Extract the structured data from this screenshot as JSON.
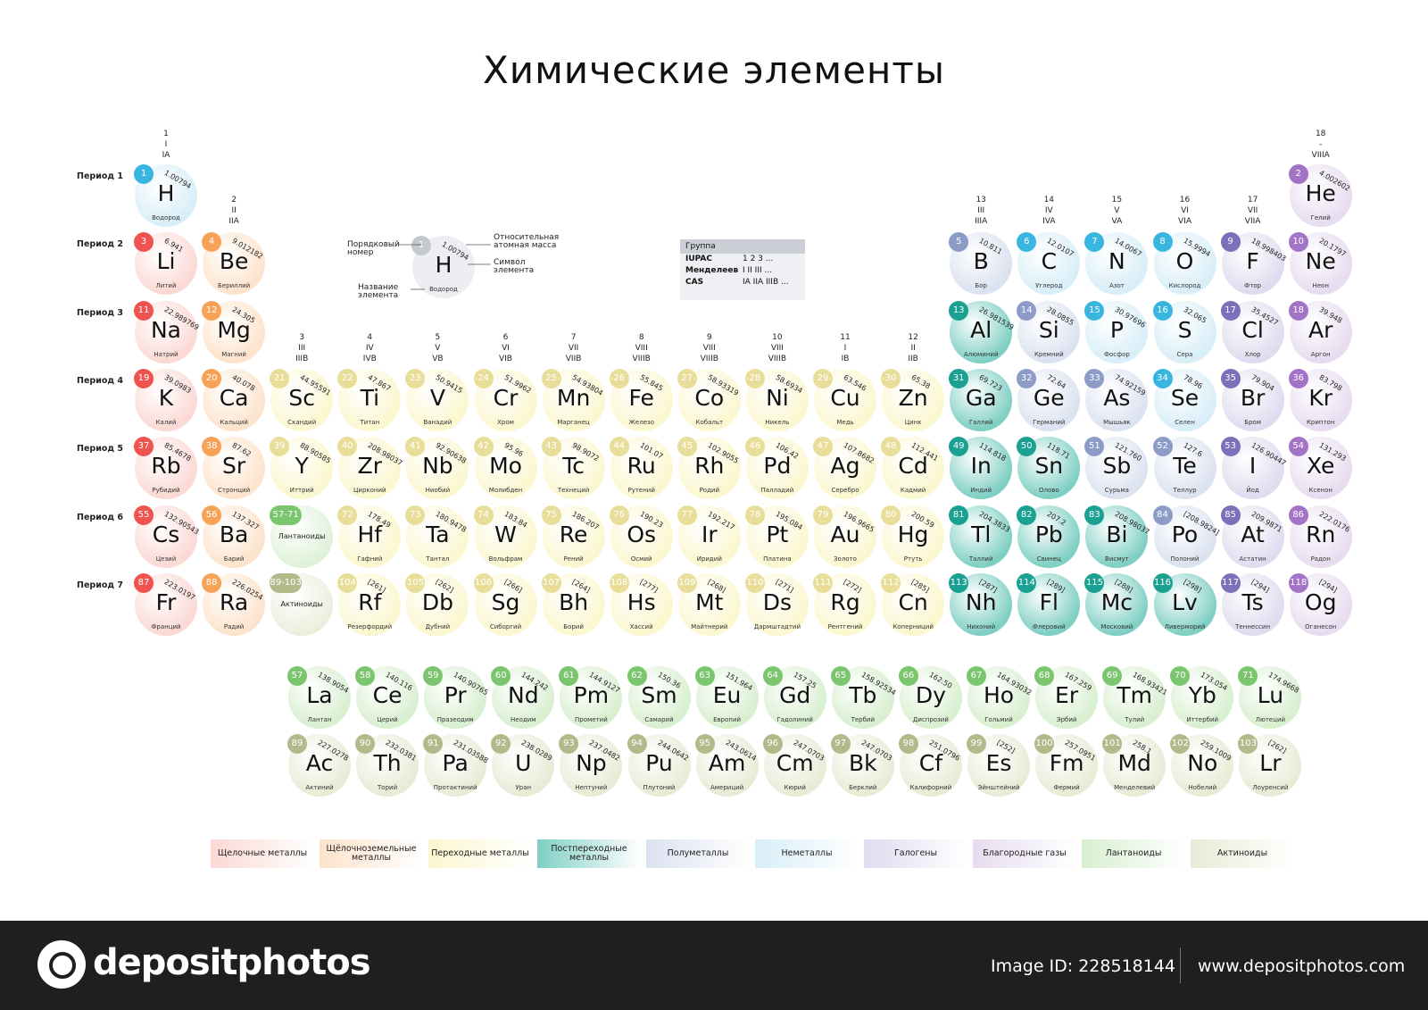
{
  "title": "Химические элементы",
  "groups": [
    {
      "n": "1",
      "r": "I",
      "c": "IA"
    },
    {
      "n": "2",
      "r": "II",
      "c": "IIA"
    },
    {
      "n": "3",
      "r": "III",
      "c": "IIIB"
    },
    {
      "n": "4",
      "r": "IV",
      "c": "IVB"
    },
    {
      "n": "5",
      "r": "V",
      "c": "VB"
    },
    {
      "n": "6",
      "r": "VI",
      "c": "VIB"
    },
    {
      "n": "7",
      "r": "VII",
      "c": "VIIB"
    },
    {
      "n": "8",
      "r": "VIII",
      "c": "VIIIB"
    },
    {
      "n": "9",
      "r": "VIII",
      "c": "VIIIB"
    },
    {
      "n": "10",
      "r": "VIII",
      "c": "VIIIB"
    },
    {
      "n": "11",
      "r": "I",
      "c": "IB"
    },
    {
      "n": "12",
      "r": "II",
      "c": "IIB"
    },
    {
      "n": "13",
      "r": "III",
      "c": "IIIA"
    },
    {
      "n": "14",
      "r": "IV",
      "c": "IVA"
    },
    {
      "n": "15",
      "r": "V",
      "c": "VA"
    },
    {
      "n": "16",
      "r": "VI",
      "c": "VIA"
    },
    {
      "n": "17",
      "r": "VII",
      "c": "VIIA"
    },
    {
      "n": "18",
      "r": "-",
      "c": "VIIIA"
    }
  ],
  "periods": [
    "Период 1",
    "Период 2",
    "Период 3",
    "Период 4",
    "Период 5",
    "Период 6",
    "Период 7"
  ],
  "key": {
    "number_label": "Порядковый номер",
    "mass_label": "Относительная атомная масса",
    "symbol_label": "Символ элемента",
    "name_label": "Название элемента",
    "number": "1",
    "symbol": "H",
    "mass": "1.00794",
    "name": "Водород"
  },
  "group_box": {
    "header": "Группа",
    "rows": [
      {
        "label": "IUPAC",
        "value": "1  2  3 ..."
      },
      {
        "label": "Менделеев",
        "value": "I  II  III ..."
      },
      {
        "label": "CAS",
        "value": "IA  IIA  IIIB ..."
      }
    ]
  },
  "placeholders": [
    {
      "num": "57-71",
      "label": "Лантаноиды",
      "cat": "lan"
    },
    {
      "num": "89-103",
      "label": "Актиноиды",
      "cat": "act"
    }
  ],
  "categories": {
    "alk": {
      "fill": "#fbd9d4",
      "badge": "#ef5350"
    },
    "ae": {
      "fill": "#fde3cb",
      "badge": "#f6a357"
    },
    "tm": {
      "fill": "#fbf7cf",
      "badge": "#e8de9a"
    },
    "ptm": {
      "fill": "#7fcfc4",
      "badge": "#1aa192"
    },
    "met": {
      "fill": "#dbe2f0",
      "badge": "#8c9cc7"
    },
    "non": {
      "fill": "#d8eef8",
      "badge": "#38b6e0"
    },
    "hal": {
      "fill": "#dedcef",
      "badge": "#7e6fba"
    },
    "nob": {
      "fill": "#e7dcf0",
      "badge": "#a374c6"
    },
    "lan": {
      "fill": "#d8efd0",
      "badge": "#7cc56f"
    },
    "act": {
      "fill": "#e8ebd6",
      "badge": "#b4b98b"
    }
  },
  "legend": [
    {
      "label": "Щелочные металлы",
      "cat": "alk"
    },
    {
      "label": "Щёлочноземельные металлы",
      "cat": "ae"
    },
    {
      "label": "Переходные металлы",
      "cat": "tm"
    },
    {
      "label": "Постпереходные металлы",
      "cat": "ptm"
    },
    {
      "label": "Полуметаллы",
      "cat": "met"
    },
    {
      "label": "Неметаллы",
      "cat": "non"
    },
    {
      "label": "Галогены",
      "cat": "hal"
    },
    {
      "label": "Благородные газы",
      "cat": "nob"
    },
    {
      "label": "Лантаноиды",
      "cat": "lan"
    },
    {
      "label": "Актиноиды",
      "cat": "act"
    }
  ],
  "elements": [
    {
      "n": 1,
      "s": "H",
      "m": "1.00794",
      "name": "Водород",
      "g": 1,
      "p": 1,
      "c": "non"
    },
    {
      "n": 2,
      "s": "He",
      "m": "4.002602",
      "name": "Гелий",
      "g": 18,
      "p": 1,
      "c": "nob"
    },
    {
      "n": 3,
      "s": "Li",
      "m": "6.941",
      "name": "Литий",
      "g": 1,
      "p": 2,
      "c": "alk"
    },
    {
      "n": 4,
      "s": "Be",
      "m": "9.012182",
      "name": "Бериллий",
      "g": 2,
      "p": 2,
      "c": "ae"
    },
    {
      "n": 5,
      "s": "B",
      "m": "10.811",
      "name": "Бор",
      "g": 13,
      "p": 2,
      "c": "met"
    },
    {
      "n": 6,
      "s": "C",
      "m": "12.0107",
      "name": "Углерод",
      "g": 14,
      "p": 2,
      "c": "non"
    },
    {
      "n": 7,
      "s": "N",
      "m": "14.0067",
      "name": "Азот",
      "g": 15,
      "p": 2,
      "c": "non"
    },
    {
      "n": 8,
      "s": "O",
      "m": "15.9994",
      "name": "Кислород",
      "g": 16,
      "p": 2,
      "c": "non"
    },
    {
      "n": 9,
      "s": "F",
      "m": "18.998403",
      "name": "Фтор",
      "g": 17,
      "p": 2,
      "c": "hal"
    },
    {
      "n": 10,
      "s": "Ne",
      "m": "20.1797",
      "name": "Неон",
      "g": 18,
      "p": 2,
      "c": "nob"
    },
    {
      "n": 11,
      "s": "Na",
      "m": "22.989769",
      "name": "Натрий",
      "g": 1,
      "p": 3,
      "c": "alk"
    },
    {
      "n": 12,
      "s": "Mg",
      "m": "24.305",
      "name": "Магний",
      "g": 2,
      "p": 3,
      "c": "ae"
    },
    {
      "n": 13,
      "s": "Al",
      "m": "26.981539",
      "name": "Алюминий",
      "g": 13,
      "p": 3,
      "c": "ptm"
    },
    {
      "n": 14,
      "s": "Si",
      "m": "28.0855",
      "name": "Кремний",
      "g": 14,
      "p": 3,
      "c": "met"
    },
    {
      "n": 15,
      "s": "P",
      "m": "30.97696",
      "name": "Фосфор",
      "g": 15,
      "p": 3,
      "c": "non"
    },
    {
      "n": 16,
      "s": "S",
      "m": "32.065",
      "name": "Сера",
      "g": 16,
      "p": 3,
      "c": "non"
    },
    {
      "n": 17,
      "s": "Cl",
      "m": "35.4527",
      "name": "Хлор",
      "g": 17,
      "p": 3,
      "c": "hal"
    },
    {
      "n": 18,
      "s": "Ar",
      "m": "39.948",
      "name": "Аргон",
      "g": 18,
      "p": 3,
      "c": "nob"
    },
    {
      "n": 19,
      "s": "K",
      "m": "39.0983",
      "name": "Калий",
      "g": 1,
      "p": 4,
      "c": "alk"
    },
    {
      "n": 20,
      "s": "Ca",
      "m": "40.078",
      "name": "Кальций",
      "g": 2,
      "p": 4,
      "c": "ae"
    },
    {
      "n": 21,
      "s": "Sc",
      "m": "44.95591",
      "name": "Скандий",
      "g": 3,
      "p": 4,
      "c": "tm"
    },
    {
      "n": 22,
      "s": "Ti",
      "m": "47.867",
      "name": "Титан",
      "g": 4,
      "p": 4,
      "c": "tm"
    },
    {
      "n": 23,
      "s": "V",
      "m": "50.9415",
      "name": "Ванадий",
      "g": 5,
      "p": 4,
      "c": "tm"
    },
    {
      "n": 24,
      "s": "Cr",
      "m": "51.9962",
      "name": "Хром",
      "g": 6,
      "p": 4,
      "c": "tm"
    },
    {
      "n": 25,
      "s": "Mn",
      "m": "54.93804",
      "name": "Марганец",
      "g": 7,
      "p": 4,
      "c": "tm"
    },
    {
      "n": 26,
      "s": "Fe",
      "m": "55.845",
      "name": "Железо",
      "g": 8,
      "p": 4,
      "c": "tm"
    },
    {
      "n": 27,
      "s": "Co",
      "m": "58.93319",
      "name": "Кобальт",
      "g": 9,
      "p": 4,
      "c": "tm"
    },
    {
      "n": 28,
      "s": "Ni",
      "m": "58.6934",
      "name": "Никель",
      "g": 10,
      "p": 4,
      "c": "tm"
    },
    {
      "n": 29,
      "s": "Cu",
      "m": "63.546",
      "name": "Медь",
      "g": 11,
      "p": 4,
      "c": "tm"
    },
    {
      "n": 30,
      "s": "Zn",
      "m": "65.38",
      "name": "Цинк",
      "g": 12,
      "p": 4,
      "c": "tm"
    },
    {
      "n": 31,
      "s": "Ga",
      "m": "69.723",
      "name": "Галлий",
      "g": 13,
      "p": 4,
      "c": "ptm"
    },
    {
      "n": 32,
      "s": "Ge",
      "m": "72.64",
      "name": "Германий",
      "g": 14,
      "p": 4,
      "c": "met"
    },
    {
      "n": 33,
      "s": "As",
      "m": "74.92159",
      "name": "Мышьяк",
      "g": 15,
      "p": 4,
      "c": "met"
    },
    {
      "n": 34,
      "s": "Se",
      "m": "78.96",
      "name": "Селен",
      "g": 16,
      "p": 4,
      "c": "non"
    },
    {
      "n": 35,
      "s": "Br",
      "m": "79.904",
      "name": "Бром",
      "g": 17,
      "p": 4,
      "c": "hal"
    },
    {
      "n": 36,
      "s": "Kr",
      "m": "83.798",
      "name": "Криптон",
      "g": 18,
      "p": 4,
      "c": "nob"
    },
    {
      "n": 37,
      "s": "Rb",
      "m": "85.4678",
      "name": "Рубидий",
      "g": 1,
      "p": 5,
      "c": "alk"
    },
    {
      "n": 38,
      "s": "Sr",
      "m": "87.62",
      "name": "Стронций",
      "g": 2,
      "p": 5,
      "c": "ae"
    },
    {
      "n": 39,
      "s": "Y",
      "m": "88.90585",
      "name": "Иттрий",
      "g": 3,
      "p": 5,
      "c": "tm"
    },
    {
      "n": 40,
      "s": "Zr",
      "m": "208.98037",
      "name": "Цирконий",
      "g": 4,
      "p": 5,
      "c": "tm"
    },
    {
      "n": 41,
      "s": "Nb",
      "m": "92.90638",
      "name": "Ниобий",
      "g": 5,
      "p": 5,
      "c": "tm"
    },
    {
      "n": 42,
      "s": "Mo",
      "m": "95.96",
      "name": "Молибден",
      "g": 6,
      "p": 5,
      "c": "tm"
    },
    {
      "n": 43,
      "s": "Tc",
      "m": "98.9072",
      "name": "Технеций",
      "g": 7,
      "p": 5,
      "c": "tm"
    },
    {
      "n": 44,
      "s": "Ru",
      "m": "101.07",
      "name": "Рутений",
      "g": 8,
      "p": 5,
      "c": "tm"
    },
    {
      "n": 45,
      "s": "Rh",
      "m": "102.9055",
      "name": "Родий",
      "g": 9,
      "p": 5,
      "c": "tm"
    },
    {
      "n": 46,
      "s": "Pd",
      "m": "106.42",
      "name": "Палладий",
      "g": 10,
      "p": 5,
      "c": "tm"
    },
    {
      "n": 47,
      "s": "Ag",
      "m": "107.8682",
      "name": "Серебро",
      "g": 11,
      "p": 5,
      "c": "tm"
    },
    {
      "n": 48,
      "s": "Cd",
      "m": "112.441",
      "name": "Кадмий",
      "g": 12,
      "p": 5,
      "c": "tm"
    },
    {
      "n": 49,
      "s": "In",
      "m": "114.818",
      "name": "Индий",
      "g": 13,
      "p": 5,
      "c": "ptm"
    },
    {
      "n": 50,
      "s": "Sn",
      "m": "118.71",
      "name": "Олово",
      "g": 14,
      "p": 5,
      "c": "ptm"
    },
    {
      "n": 51,
      "s": "Sb",
      "m": "121.760",
      "name": "Сурьма",
      "g": 15,
      "p": 5,
      "c": "met"
    },
    {
      "n": 52,
      "s": "Te",
      "m": "127.6",
      "name": "Теллур",
      "g": 16,
      "p": 5,
      "c": "met"
    },
    {
      "n": 53,
      "s": "I",
      "m": "126.90447",
      "name": "Йод",
      "g": 17,
      "p": 5,
      "c": "hal"
    },
    {
      "n": 54,
      "s": "Xe",
      "m": "131.293",
      "name": "Ксенон",
      "g": 18,
      "p": 5,
      "c": "nob"
    },
    {
      "n": 55,
      "s": "Cs",
      "m": "132.90543",
      "name": "Цезий",
      "g": 1,
      "p": 6,
      "c": "alk"
    },
    {
      "n": 56,
      "s": "Ba",
      "m": "137.327",
      "name": "Барий",
      "g": 2,
      "p": 6,
      "c": "ae"
    },
    {
      "n": 72,
      "s": "Hf",
      "m": "178.49",
      "name": "Гафний",
      "g": 4,
      "p": 6,
      "c": "tm"
    },
    {
      "n": 73,
      "s": "Ta",
      "m": "180.9478",
      "name": "Тантал",
      "g": 5,
      "p": 6,
      "c": "tm"
    },
    {
      "n": 74,
      "s": "W",
      "m": "183.84",
      "name": "Вольфрам",
      "g": 6,
      "p": 6,
      "c": "tm"
    },
    {
      "n": 75,
      "s": "Re",
      "m": "186.207",
      "name": "Рений",
      "g": 7,
      "p": 6,
      "c": "tm"
    },
    {
      "n": 76,
      "s": "Os",
      "m": "190.23",
      "name": "Осмий",
      "g": 8,
      "p": 6,
      "c": "tm"
    },
    {
      "n": 77,
      "s": "Ir",
      "m": "192.217",
      "name": "Иридий",
      "g": 9,
      "p": 6,
      "c": "tm"
    },
    {
      "n": 78,
      "s": "Pt",
      "m": "195.084",
      "name": "Платина",
      "g": 10,
      "p": 6,
      "c": "tm"
    },
    {
      "n": 79,
      "s": "Au",
      "m": "196.9665",
      "name": "Золото",
      "g": 11,
      "p": 6,
      "c": "tm"
    },
    {
      "n": 80,
      "s": "Hg",
      "m": "200.59",
      "name": "Ртуть",
      "g": 12,
      "p": 6,
      "c": "tm"
    },
    {
      "n": 81,
      "s": "Tl",
      "m": "204.3833",
      "name": "Таллий",
      "g": 13,
      "p": 6,
      "c": "ptm"
    },
    {
      "n": 82,
      "s": "Pb",
      "m": "207.2",
      "name": "Свинец",
      "g": 14,
      "p": 6,
      "c": "ptm"
    },
    {
      "n": 83,
      "s": "Bi",
      "m": "208.98037",
      "name": "Висмут",
      "g": 15,
      "p": 6,
      "c": "ptm"
    },
    {
      "n": 84,
      "s": "Po",
      "m": "[208.9824]",
      "name": "Полоний",
      "g": 16,
      "p": 6,
      "c": "met"
    },
    {
      "n": 85,
      "s": "At",
      "m": "209.9871",
      "name": "Астатин",
      "g": 17,
      "p": 6,
      "c": "hal"
    },
    {
      "n": 86,
      "s": "Rn",
      "m": "222.0176",
      "name": "Радон",
      "g": 18,
      "p": 6,
      "c": "nob"
    },
    {
      "n": 87,
      "s": "Fr",
      "m": "223.0197",
      "name": "Франций",
      "g": 1,
      "p": 7,
      "c": "alk"
    },
    {
      "n": 88,
      "s": "Ra",
      "m": "226.0254",
      "name": "Радий",
      "g": 2,
      "p": 7,
      "c": "ae"
    },
    {
      "n": 104,
      "s": "Rf",
      "m": "[261]",
      "name": "Резерфордий",
      "g": 4,
      "p": 7,
      "c": "tm"
    },
    {
      "n": 105,
      "s": "Db",
      "m": "[262]",
      "name": "Дубний",
      "g": 5,
      "p": 7,
      "c": "tm"
    },
    {
      "n": 106,
      "s": "Sg",
      "m": "[266]",
      "name": "Сиборгий",
      "g": 6,
      "p": 7,
      "c": "tm"
    },
    {
      "n": 107,
      "s": "Bh",
      "m": "[264]",
      "name": "Борий",
      "g": 7,
      "p": 7,
      "c": "tm"
    },
    {
      "n": 108,
      "s": "Hs",
      "m": "[277]",
      "name": "Хассий",
      "g": 8,
      "p": 7,
      "c": "tm"
    },
    {
      "n": 109,
      "s": "Mt",
      "m": "[268]",
      "name": "Майтнерий",
      "g": 9,
      "p": 7,
      "c": "tm"
    },
    {
      "n": 110,
      "s": "Ds",
      "m": "[271]",
      "name": "Дармштадтий",
      "g": 10,
      "p": 7,
      "c": "tm"
    },
    {
      "n": 111,
      "s": "Rg",
      "m": "[272]",
      "name": "Рентгений",
      "g": 11,
      "p": 7,
      "c": "tm"
    },
    {
      "n": 112,
      "s": "Cn",
      "m": "[285]",
      "name": "Коперниций",
      "g": 12,
      "p": 7,
      "c": "tm"
    },
    {
      "n": 113,
      "s": "Nh",
      "m": "[287]",
      "name": "Нихоний",
      "g": 13,
      "p": 7,
      "c": "ptm"
    },
    {
      "n": 114,
      "s": "Fl",
      "m": "[289]",
      "name": "Флеровий",
      "g": 14,
      "p": 7,
      "c": "ptm"
    },
    {
      "n": 115,
      "s": "Mc",
      "m": "[288]",
      "name": "Московий",
      "g": 15,
      "p": 7,
      "c": "ptm"
    },
    {
      "n": 116,
      "s": "Lv",
      "m": "[298]",
      "name": "Ливерморий",
      "g": 16,
      "p": 7,
      "c": "ptm"
    },
    {
      "n": 117,
      "s": "Ts",
      "m": "[294]",
      "name": "Теннессин",
      "g": 17,
      "p": 7,
      "c": "hal"
    },
    {
      "n": 118,
      "s": "Og",
      "m": "[294]",
      "name": "Оганесон",
      "g": 18,
      "p": 7,
      "c": "nob"
    }
  ],
  "lanthanides": [
    {
      "n": 57,
      "s": "La",
      "m": "138.9054",
      "name": "Лантан"
    },
    {
      "n": 58,
      "s": "Ce",
      "m": "140.116",
      "name": "Церий"
    },
    {
      "n": 59,
      "s": "Pr",
      "m": "140.90765",
      "name": "Празеодим"
    },
    {
      "n": 60,
      "s": "Nd",
      "m": "144.242",
      "name": "Неодим"
    },
    {
      "n": 61,
      "s": "Pm",
      "m": "144.9127",
      "name": "Прометий"
    },
    {
      "n": 62,
      "s": "Sm",
      "m": "150.36",
      "name": "Самарий"
    },
    {
      "n": 63,
      "s": "Eu",
      "m": "151.964",
      "name": "Европий"
    },
    {
      "n": 64,
      "s": "Gd",
      "m": "157.25",
      "name": "Гадолиний"
    },
    {
      "n": 65,
      "s": "Tb",
      "m": "158.92534",
      "name": "Тербий"
    },
    {
      "n": 66,
      "s": "Dy",
      "m": "162.50",
      "name": "Диспрозий"
    },
    {
      "n": 67,
      "s": "Ho",
      "m": "164.93032",
      "name": "Гольмий"
    },
    {
      "n": 68,
      "s": "Er",
      "m": "167.259",
      "name": "Эрбий"
    },
    {
      "n": 69,
      "s": "Tm",
      "m": "168.93421",
      "name": "Тулий"
    },
    {
      "n": 70,
      "s": "Yb",
      "m": "173.054",
      "name": "Иттербий"
    },
    {
      "n": 71,
      "s": "Lu",
      "m": "174.9668",
      "name": "Лютеций"
    }
  ],
  "actinides": [
    {
      "n": 89,
      "s": "Ac",
      "m": "227.0278",
      "name": "Актиний"
    },
    {
      "n": 90,
      "s": "Th",
      "m": "232.0381",
      "name": "Торий"
    },
    {
      "n": 91,
      "s": "Pa",
      "m": "231.03588",
      "name": "Протактиний"
    },
    {
      "n": 92,
      "s": "U",
      "m": "238.0289",
      "name": "Уран"
    },
    {
      "n": 93,
      "s": "Np",
      "m": "237.0482",
      "name": "Нептуний"
    },
    {
      "n": 94,
      "s": "Pu",
      "m": "244.0642",
      "name": "Плутоний"
    },
    {
      "n": 95,
      "s": "Am",
      "m": "243.0614",
      "name": "Америций"
    },
    {
      "n": 96,
      "s": "Cm",
      "m": "247.0703",
      "name": "Кюрий"
    },
    {
      "n": 97,
      "s": "Bk",
      "m": "247.0703",
      "name": "Берклий"
    },
    {
      "n": 98,
      "s": "Cf",
      "m": "251.0796",
      "name": "Калифорний"
    },
    {
      "n": 99,
      "s": "Es",
      "m": "[252]",
      "name": "Эйнштейний"
    },
    {
      "n": 100,
      "s": "Fm",
      "m": "257.0951",
      "name": "Фермий"
    },
    {
      "n": 101,
      "s": "Md",
      "m": "258.1",
      "name": "Менделевий"
    },
    {
      "n": 102,
      "s": "No",
      "m": "259.1009",
      "name": "Нобелий"
    },
    {
      "n": 103,
      "s": "Lr",
      "m": "[262]",
      "name": "Лоуренсий"
    }
  ],
  "footer": {
    "brand": "depositphotos",
    "image_id": "Image ID: 228518144",
    "site": "www.depositphotos.com",
    "logo_icon": "camera-aperture-icon"
  }
}
